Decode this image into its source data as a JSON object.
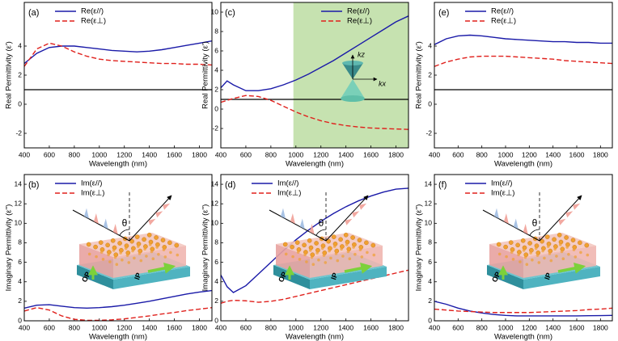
{
  "chart_data": [
    {
      "type": "line",
      "panel_label": "(a)",
      "x_label": "Wavelength (nm)",
      "y_label": "Real Permittivity (ε')",
      "x": [
        400,
        500,
        600,
        700,
        800,
        900,
        1000,
        1100,
        1200,
        1300,
        1400,
        1500,
        1600,
        1700,
        1800,
        1900
      ],
      "series": [
        {
          "name": "Re(ε//)",
          "color": "#1a1aa8",
          "linestyle": "solid",
          "values": [
            2.8,
            3.5,
            3.9,
            4.0,
            4.0,
            3.9,
            3.8,
            3.7,
            3.65,
            3.6,
            3.65,
            3.75,
            3.9,
            4.05,
            4.2,
            4.35
          ]
        },
        {
          "name": "Re(ε⊥)",
          "color": "#e0201c",
          "linestyle": "dashed",
          "values": [
            2.6,
            3.8,
            4.2,
            4.0,
            3.6,
            3.3,
            3.1,
            3.0,
            2.95,
            2.9,
            2.85,
            2.8,
            2.8,
            2.75,
            2.75,
            2.7
          ]
        }
      ],
      "xlim": [
        400,
        1900
      ],
      "ylim": [
        -3,
        7
      ],
      "xticks": [
        400,
        600,
        800,
        1000,
        1200,
        1400,
        1600,
        1800
      ],
      "yticks": [
        -2,
        0,
        2,
        4
      ],
      "reference_line": 1,
      "legend": "upper left"
    },
    {
      "type": "line",
      "panel_label": "(c)",
      "x_label": "Wavelength (nm)",
      "y_label": "Real Permittivity (ε')",
      "x": [
        400,
        450,
        500,
        600,
        700,
        800,
        900,
        1000,
        1100,
        1200,
        1300,
        1400,
        1500,
        1600,
        1700,
        1800,
        1900
      ],
      "series": [
        {
          "name": "Re(ε//)",
          "color": "#1a1aa8",
          "linestyle": "solid",
          "values": [
            2.2,
            2.9,
            2.5,
            1.9,
            1.9,
            2.1,
            2.5,
            3.0,
            3.6,
            4.3,
            5.0,
            5.8,
            6.6,
            7.4,
            8.2,
            9.0,
            9.6
          ]
        },
        {
          "name": "Re(ε⊥)",
          "color": "#e0201c",
          "linestyle": "dashed",
          "values": [
            0.7,
            0.9,
            1.1,
            1.4,
            1.3,
            0.9,
            0.3,
            -0.3,
            -0.8,
            -1.2,
            -1.5,
            -1.7,
            -1.85,
            -1.95,
            -2.0,
            -2.05,
            -2.1
          ]
        }
      ],
      "xlim": [
        400,
        1900
      ],
      "ylim": [
        -4,
        11
      ],
      "xticks": [
        400,
        600,
        800,
        1000,
        1200,
        1400,
        1600,
        1800
      ],
      "yticks": [
        -2,
        0,
        2,
        4,
        6,
        8,
        10
      ],
      "reference_line": 1,
      "legend": "upper right",
      "shaded_region": [
        980,
        1900
      ],
      "shade_color": "#c6e2b0",
      "inset": "cone",
      "inset_labels": [
        "kz",
        "kx"
      ]
    },
    {
      "type": "line",
      "panel_label": "(e)",
      "x_label": "Wavelength (nm)",
      "y_label": "Real Permittivity (ε')",
      "x": [
        400,
        500,
        600,
        700,
        800,
        900,
        1000,
        1100,
        1200,
        1300,
        1400,
        1500,
        1600,
        1700,
        1800,
        1900
      ],
      "series": [
        {
          "name": "Re(ε//)",
          "color": "#1a1aa8",
          "linestyle": "solid",
          "values": [
            4.1,
            4.5,
            4.7,
            4.75,
            4.7,
            4.6,
            4.5,
            4.45,
            4.4,
            4.35,
            4.3,
            4.3,
            4.25,
            4.25,
            4.2,
            4.2
          ]
        },
        {
          "name": "Re(ε⊥)",
          "color": "#e0201c",
          "linestyle": "dashed",
          "values": [
            2.6,
            2.9,
            3.1,
            3.25,
            3.3,
            3.3,
            3.3,
            3.25,
            3.2,
            3.15,
            3.1,
            3.0,
            2.95,
            2.9,
            2.85,
            2.8
          ]
        }
      ],
      "xlim": [
        400,
        1900
      ],
      "ylim": [
        -3,
        7
      ],
      "xticks": [
        400,
        600,
        800,
        1000,
        1200,
        1400,
        1600,
        1800
      ],
      "yticks": [
        -2,
        0,
        2,
        4
      ],
      "reference_line": 1,
      "legend": "upper left"
    },
    {
      "type": "line",
      "panel_label": "(b)",
      "x_label": "Wavelength (nm)",
      "y_label": "Imaginary Permittivity (ε'')",
      "x": [
        400,
        500,
        600,
        700,
        800,
        900,
        1000,
        1100,
        1200,
        1300,
        1400,
        1500,
        1600,
        1700,
        1800,
        1900
      ],
      "series": [
        {
          "name": "Im(ε//)",
          "color": "#1a1aa8",
          "linestyle": "solid",
          "values": [
            1.3,
            1.6,
            1.65,
            1.5,
            1.35,
            1.3,
            1.35,
            1.45,
            1.6,
            1.8,
            2.0,
            2.25,
            2.5,
            2.75,
            2.95,
            3.1
          ]
        },
        {
          "name": "Im(ε⊥)",
          "color": "#e0201c",
          "linestyle": "dashed",
          "values": [
            1.0,
            1.35,
            1.1,
            0.5,
            0.15,
            0.05,
            0.05,
            0.1,
            0.2,
            0.35,
            0.5,
            0.7,
            0.85,
            1.05,
            1.2,
            1.35
          ]
        }
      ],
      "xlim": [
        400,
        1900
      ],
      "ylim": [
        0,
        15
      ],
      "xticks": [
        400,
        600,
        800,
        1000,
        1200,
        1400,
        1600,
        1800
      ],
      "yticks": [
        0,
        2,
        4,
        6,
        8,
        10,
        12,
        14
      ],
      "legend": "upper left",
      "inset": "slab",
      "inset_labels": [
        "θ",
        "OP",
        "IP"
      ]
    },
    {
      "type": "line",
      "panel_label": "(d)",
      "x_label": "Wavelength (nm)",
      "y_label": "Imaginary Permittivity (ε'')",
      "x": [
        400,
        450,
        500,
        600,
        700,
        800,
        900,
        1000,
        1100,
        1200,
        1300,
        1400,
        1500,
        1600,
        1700,
        1800,
        1900
      ],
      "series": [
        {
          "name": "Im(ε//)",
          "color": "#1a1aa8",
          "linestyle": "solid",
          "values": [
            4.7,
            3.5,
            2.9,
            3.6,
            4.8,
            6.0,
            7.2,
            8.3,
            9.3,
            10.2,
            11.0,
            11.7,
            12.3,
            12.8,
            13.2,
            13.5,
            13.6
          ]
        },
        {
          "name": "Im(ε⊥)",
          "color": "#e0201c",
          "linestyle": "dashed",
          "values": [
            1.8,
            2.0,
            2.1,
            2.05,
            1.9,
            2.0,
            2.2,
            2.5,
            2.8,
            3.1,
            3.4,
            3.7,
            4.0,
            4.3,
            4.6,
            4.9,
            5.2
          ]
        }
      ],
      "xlim": [
        400,
        1900
      ],
      "ylim": [
        0,
        15
      ],
      "xticks": [
        400,
        600,
        800,
        1000,
        1200,
        1400,
        1600,
        1800
      ],
      "yticks": [
        0,
        2,
        4,
        6,
        8,
        10,
        12,
        14
      ],
      "legend": "upper left",
      "inset": "slab",
      "inset_labels": [
        "θ",
        "OP",
        "IP"
      ]
    },
    {
      "type": "line",
      "panel_label": "(f)",
      "x_label": "Wavelength (nm)",
      "y_label": "Imaginary Permittivity (ε'')",
      "x": [
        400,
        500,
        600,
        700,
        800,
        900,
        1000,
        1100,
        1200,
        1300,
        1400,
        1500,
        1600,
        1700,
        1800,
        1900
      ],
      "series": [
        {
          "name": "Im(ε//)",
          "color": "#1a1aa8",
          "linestyle": "solid",
          "values": [
            2.0,
            1.7,
            1.3,
            1.0,
            0.8,
            0.65,
            0.55,
            0.5,
            0.5,
            0.5,
            0.5,
            0.5,
            0.5,
            0.52,
            0.53,
            0.55
          ]
        },
        {
          "name": "Im(ε⊥)",
          "color": "#e0201c",
          "linestyle": "dashed",
          "values": [
            1.2,
            1.1,
            1.0,
            0.95,
            0.9,
            0.85,
            0.85,
            0.85,
            0.85,
            0.9,
            0.95,
            1.0,
            1.05,
            1.15,
            1.2,
            1.3
          ]
        }
      ],
      "xlim": [
        400,
        1900
      ],
      "ylim": [
        0,
        15
      ],
      "xticks": [
        400,
        600,
        800,
        1000,
        1200,
        1400,
        1600,
        1800
      ],
      "yticks": [
        0,
        2,
        4,
        6,
        8,
        10,
        12,
        14
      ],
      "legend": "upper left",
      "inset": "slab",
      "inset_labels": [
        "θ",
        "OP",
        "IP"
      ]
    }
  ]
}
